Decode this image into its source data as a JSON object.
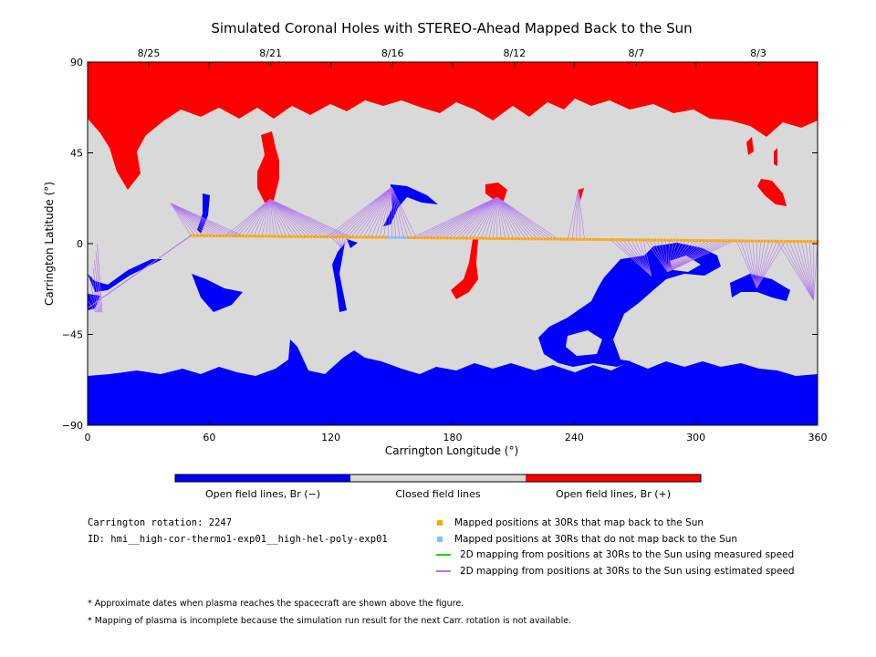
{
  "chart_data": {
    "type": "map",
    "title": "Simulated Coronal Holes with STEREO-Ahead Mapped Back to the Sun",
    "xlabel": "Carrington Longitude (°)",
    "ylabel": "Carrington Latitude (°)",
    "xlim": [
      0,
      360
    ],
    "ylim": [
      -90,
      90
    ],
    "xticks": [
      "0",
      "60",
      "120",
      "180",
      "240",
      "300",
      "360"
    ],
    "yticks": [
      "90",
      "45",
      "0",
      "−45",
      "−90"
    ],
    "top_dates": [
      "8/25",
      "8/21",
      "8/16",
      "8/12",
      "8/7",
      "8/3"
    ],
    "colors": {
      "closed": "#d9d9d9",
      "open_negative": "#0000ff",
      "open_positive": "#ff0000",
      "mapped_back": "#ffa500",
      "not_mapped_back": "#7fbfff",
      "measured_speed": "#00e000",
      "estimated_speed": "#b070f0"
    },
    "mapped_track": {
      "lon_start": 51,
      "lon_end": 360,
      "lat_start": 4,
      "lat_end": 1,
      "not_mapped_lon_range": [
        148,
        158
      ]
    }
  },
  "colorbar": {
    "labels": [
      "Open field lines, Br (−)",
      "Closed field lines",
      "Open field lines, Br (+)"
    ]
  },
  "info": {
    "rotation": "Carrington rotation: 2247",
    "id": "ID: hmi__high-cor-thermo1-exp01__high-hel-poly-exp01"
  },
  "legend": [
    {
      "label": "Mapped positions at 30Rs that map back to the Sun",
      "marker": "square",
      "color": "#ffa500"
    },
    {
      "label": "Mapped positions at 30Rs that do not map back to the Sun",
      "marker": "square",
      "color": "#7fbfff"
    },
    {
      "label": "2D mapping from positions at 30Rs to the Sun using measured speed",
      "marker": "line",
      "color": "#00e000"
    },
    {
      "label": "2D mapping from positions at 30Rs to the Sun using estimated speed",
      "marker": "line",
      "color": "#b070f0"
    }
  ],
  "footnotes": [
    "* Approximate dates when plasma reaches the spacecraft are shown above the figure.",
    "* Mapping of plasma is incomplete because the simulation run result for the next Carr. rotation is not available."
  ]
}
